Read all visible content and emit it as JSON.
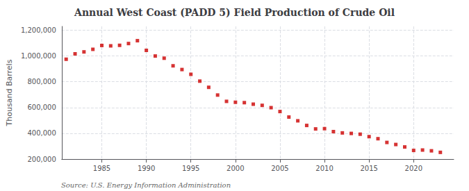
{
  "chart_data": {
    "type": "scatter",
    "title": "Annual West Coast (PADD 5) Field Production of Crude Oil",
    "ylabel": "Thousand Barrels",
    "annotation": "Source: U.S. Energy Information Administration",
    "x": [
      1981,
      1982,
      1983,
      1984,
      1985,
      1986,
      1987,
      1988,
      1989,
      1990,
      1991,
      1992,
      1993,
      1994,
      1995,
      1996,
      1997,
      1998,
      1999,
      2000,
      2001,
      2002,
      2003,
      2004,
      2005,
      2006,
      2007,
      2008,
      2009,
      2010,
      2011,
      2012,
      2013,
      2014,
      2015,
      2016,
      2017,
      2018,
      2019,
      2020,
      2021,
      2022,
      2023
    ],
    "values": [
      975000,
      1017000,
      1032000,
      1052000,
      1082000,
      1079000,
      1083000,
      1097000,
      1119000,
      1044000,
      1000000,
      983000,
      924000,
      895000,
      858000,
      805000,
      757000,
      697000,
      648000,
      641000,
      638000,
      626000,
      617000,
      599000,
      569000,
      526000,
      497000,
      461000,
      434000,
      436000,
      413000,
      403000,
      399000,
      393000,
      374000,
      358000,
      329000,
      313000,
      294000,
      267000,
      270000,
      264000,
      252000
    ],
    "color": "#cc0000",
    "marker": "square",
    "xlim": [
      1980.5,
      2024.5
    ],
    "xticks": [
      1985,
      1990,
      1995,
      2000,
      2005,
      2010,
      2015,
      2020
    ],
    "ylim": [
      200000,
      1230000
    ],
    "yticks": [
      {
        "value": 200000,
        "label": "200,000"
      },
      {
        "value": 400000,
        "label": "400,000"
      },
      {
        "value": 600000,
        "label": "600,000"
      },
      {
        "value": 800000,
        "label": "800,000"
      },
      {
        "value": 1000000,
        "label": "1,000,000"
      },
      {
        "value": 1200000,
        "label": "1,200,000"
      }
    ],
    "grid": true
  }
}
